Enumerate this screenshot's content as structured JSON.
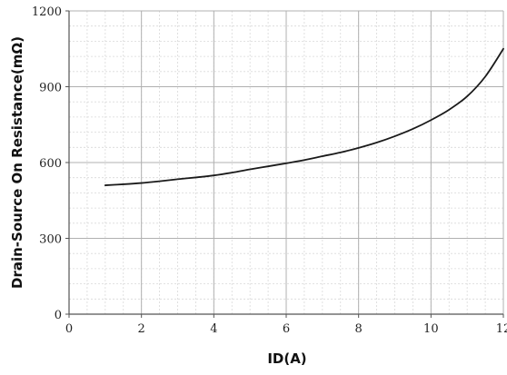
{
  "chart_data": {
    "type": "line",
    "title": "",
    "xlabel": "ID(A)",
    "ylabel": "Drain-Source On Resistance(mΩ)",
    "xlim": [
      0,
      12
    ],
    "ylim": [
      0,
      1200
    ],
    "x_ticks": [
      0,
      2,
      4,
      6,
      8,
      10,
      12
    ],
    "y_ticks": [
      0,
      300,
      600,
      900,
      1200
    ],
    "x_tick_labels": [
      "0",
      "2",
      "4",
      "6",
      "8",
      "10",
      "12"
    ],
    "y_tick_labels": [
      "0",
      "300",
      "600",
      "900",
      "1200"
    ],
    "x_minor_step": 0.5,
    "y_minor_step": 60,
    "grid": true,
    "legend": "none",
    "series": [
      {
        "color": "#1a1a1a",
        "x": [
          1,
          1.5,
          2,
          2.5,
          3,
          3.5,
          4,
          4.5,
          5,
          5.5,
          6,
          6.5,
          7,
          7.5,
          8,
          8.5,
          9,
          9.5,
          10,
          10.5,
          11,
          11.5,
          12
        ],
        "y": [
          510,
          514,
          519,
          526,
          534,
          541,
          549,
          560,
          573,
          585,
          597,
          610,
          625,
          640,
          658,
          679,
          704,
          733,
          768,
          809,
          862,
          940,
          1050
        ]
      }
    ]
  }
}
